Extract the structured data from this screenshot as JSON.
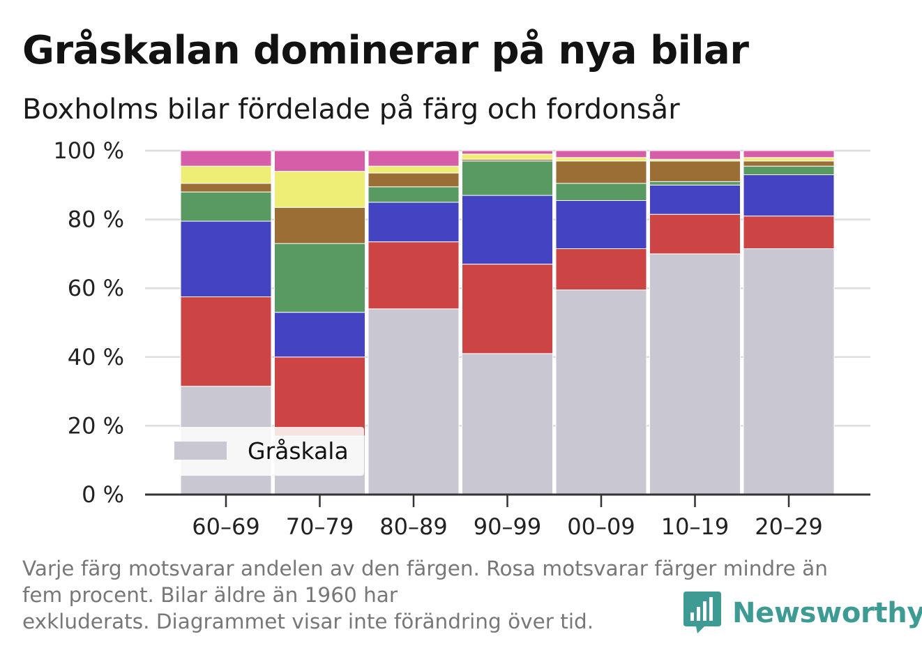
{
  "title": "Gråskalan dominerar på nya bilar",
  "subtitle": "Boxholms bilar fördelade på färg och fordonsår",
  "footnote": {
    "line1": "Varje färg motsvarar andelen av den färgen. Rosa motsvarar färger mindre än",
    "line2": "fem procent. Bilar äldre än 1960 har",
    "line3": "exkluderats. Diagrammet visar inte förändring över tid."
  },
  "logo": {
    "text": "Newsworthy",
    "icon": "newsworthy-logo-icon",
    "color": "#3d9b93"
  },
  "legend": {
    "label": "Gråskala"
  },
  "chart_data": {
    "type": "bar",
    "stacked": true,
    "title": "Gråskalan dominerar på nya bilar",
    "subtitle": "Boxholms bilar fördelade på färg och fordonsår",
    "xlabel": "",
    "ylabel": "",
    "ylim": [
      0,
      100
    ],
    "yticks": [
      "0 %",
      "20 %",
      "40 %",
      "60 %",
      "80 %",
      "100 %"
    ],
    "grid": true,
    "legend_placement": "bottom-left",
    "categories": [
      "60–69",
      "70–79",
      "80–89",
      "90–99",
      "00–09",
      "10–19",
      "20–29"
    ],
    "series": [
      {
        "name": "Gråskala",
        "color": "#c8c7d2",
        "values": [
          31.5,
          17,
          54,
          41,
          59.5,
          70,
          71.5
        ]
      },
      {
        "color": "#cc4444",
        "values": [
          26,
          23,
          19.5,
          26,
          12,
          11.5,
          9.5
        ]
      },
      {
        "color": "#4444c2",
        "values": [
          22,
          13,
          11.5,
          20,
          14,
          8.5,
          12
        ]
      },
      {
        "color": "#589a62",
        "values": [
          8.5,
          20,
          4.5,
          10,
          5,
          1,
          2.5
        ]
      },
      {
        "color": "#9a6e34",
        "values": [
          2.5,
          10.5,
          4,
          0.5,
          6.5,
          6,
          1.5
        ]
      },
      {
        "color": "#eeee77",
        "values": [
          5,
          10.5,
          2,
          1.5,
          1,
          0.5,
          1
        ]
      },
      {
        "color": "#d65ea8",
        "values": [
          4.5,
          6,
          4.5,
          1,
          2,
          2.5,
          2
        ]
      }
    ]
  }
}
